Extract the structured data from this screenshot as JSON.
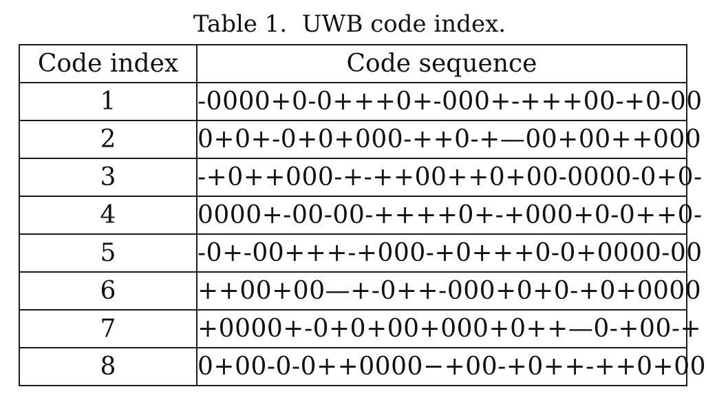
{
  "caption": "Table 1.  UWB code index.",
  "table": {
    "headers": [
      "Code index",
      "Code sequence"
    ],
    "rows": [
      {
        "index": "1",
        "sequence": "-0000+0-0+++0+-000+-+++00-+0-00"
      },
      {
        "index": "2",
        "sequence": "0+0+-0+0+000-++0-+—00+00++000"
      },
      {
        "index": "3",
        "sequence": "-+0++000-+-++00++0+00-0000-0+0-"
      },
      {
        "index": "4",
        "sequence": "0000+-00-00-++++0+-+000+0-0++0-"
      },
      {
        "index": "5",
        "sequence": "-0+-00+++-+000-+0+++0-0+0000-00"
      },
      {
        "index": "6",
        "sequence": "++00+00—+-0++-000+0+0-+0+0000"
      },
      {
        "index": "7",
        "sequence": "+0000+-0+0+00+000+0++—0-+00-+"
      },
      {
        "index": "8",
        "sequence": "0+00-0-0++0000−+00-+0++-++0+00"
      }
    ]
  }
}
